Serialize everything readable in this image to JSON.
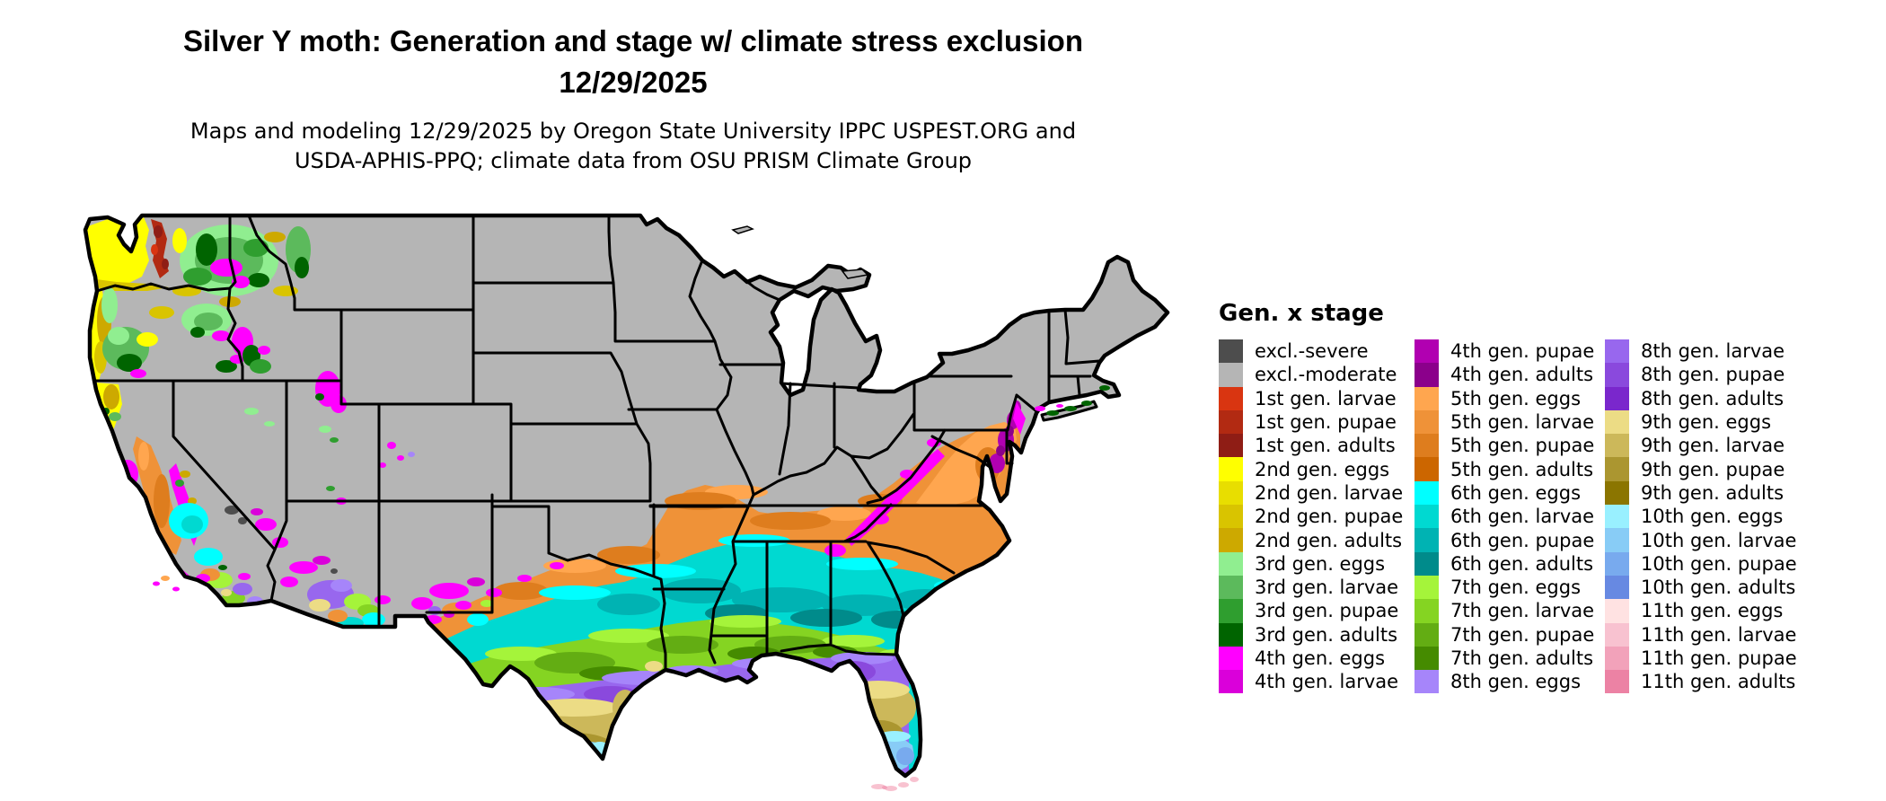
{
  "header": {
    "title_line1": "Silver Y moth: Generation and stage w/ climate stress exclusion",
    "title_line2": "12/29/2025",
    "subtitle_line1": "Maps and modeling 12/29/2025 by Oregon State University IPPC USPEST.ORG and",
    "subtitle_line2": "USDA-APHIS-PPQ; climate data from OSU PRISM Climate Group"
  },
  "legend": {
    "title": "Gen. x stage",
    "columns": [
      [
        {
          "label": "excl.-severe",
          "color_key": "excl_severe"
        },
        {
          "label": "excl.-moderate",
          "color_key": "excl_moderate"
        },
        {
          "label": "1st gen. larvae",
          "color_key": "g1_larvae"
        },
        {
          "label": "1st gen. pupae",
          "color_key": "g1_pupae"
        },
        {
          "label": "1st gen. adults",
          "color_key": "g1_adults"
        },
        {
          "label": "2nd gen. eggs",
          "color_key": "g2_eggs"
        },
        {
          "label": "2nd gen. larvae",
          "color_key": "g2_larvae"
        },
        {
          "label": "2nd gen. pupae",
          "color_key": "g2_pupae"
        },
        {
          "label": "2nd gen. adults",
          "color_key": "g2_adults"
        },
        {
          "label": "3rd gen. eggs",
          "color_key": "g3_eggs"
        },
        {
          "label": "3rd gen. larvae",
          "color_key": "g3_larvae"
        },
        {
          "label": "3rd gen. pupae",
          "color_key": "g3_pupae"
        },
        {
          "label": "3rd gen. adults",
          "color_key": "g3_adults"
        },
        {
          "label": "4th gen. eggs",
          "color_key": "g4_eggs"
        },
        {
          "label": "4th gen. larvae",
          "color_key": "g4_larvae"
        }
      ],
      [
        {
          "label": "4th gen. pupae",
          "color_key": "g4_pupae"
        },
        {
          "label": "4th gen. adults",
          "color_key": "g4_adults"
        },
        {
          "label": "5th gen. eggs",
          "color_key": "g5_eggs"
        },
        {
          "label": "5th gen. larvae",
          "color_key": "g5_larvae"
        },
        {
          "label": "5th gen. pupae",
          "color_key": "g5_pupae"
        },
        {
          "label": "5th gen. adults",
          "color_key": "g5_adults"
        },
        {
          "label": "6th gen. eggs",
          "color_key": "g6_eggs"
        },
        {
          "label": "6th gen. larvae",
          "color_key": "g6_larvae"
        },
        {
          "label": "6th gen. pupae",
          "color_key": "g6_pupae"
        },
        {
          "label": "6th gen. adults",
          "color_key": "g6_adults"
        },
        {
          "label": "7th gen. eggs",
          "color_key": "g7_eggs"
        },
        {
          "label": "7th gen. larvae",
          "color_key": "g7_larvae"
        },
        {
          "label": "7th gen. pupae",
          "color_key": "g7_pupae"
        },
        {
          "label": "7th gen. adults",
          "color_key": "g7_adults"
        },
        {
          "label": "8th gen. eggs",
          "color_key": "g8_eggs"
        }
      ],
      [
        {
          "label": "8th gen. larvae",
          "color_key": "g8_larvae"
        },
        {
          "label": "8th gen. pupae",
          "color_key": "g8_pupae"
        },
        {
          "label": "8th gen. adults",
          "color_key": "g8_adults"
        },
        {
          "label": "9th gen. eggs",
          "color_key": "g9_eggs"
        },
        {
          "label": "9th gen. larvae",
          "color_key": "g9_larvae"
        },
        {
          "label": "9th gen. pupae",
          "color_key": "g9_pupae"
        },
        {
          "label": "9th gen. adults",
          "color_key": "g9_adults"
        },
        {
          "label": "10th gen. eggs",
          "color_key": "g10_eggs"
        },
        {
          "label": "10th gen. larvae",
          "color_key": "g10_larvae"
        },
        {
          "label": "10th gen. pupae",
          "color_key": "g10_pupae"
        },
        {
          "label": "10th gen. adults",
          "color_key": "g10_adults"
        },
        {
          "label": "11th gen. eggs",
          "color_key": "g11_eggs"
        },
        {
          "label": "11th gen. larvae",
          "color_key": "g11_larvae"
        },
        {
          "label": "11th gen. pupae",
          "color_key": "g11_pupae"
        },
        {
          "label": "11th gen. adults",
          "color_key": "g11_adults"
        }
      ]
    ]
  },
  "palette": {
    "excl_severe": "#4d4d4d",
    "excl_moderate": "#b5b5b5",
    "g1_larvae": "#d93511",
    "g1_pupae": "#b22a12",
    "g1_adults": "#8f1d15",
    "g2_eggs": "#ffff00",
    "g2_larvae": "#e8de00",
    "g2_pupae": "#d9c400",
    "g2_adults": "#cda900",
    "g3_eggs": "#90ee90",
    "g3_larvae": "#5cba5c",
    "g3_pupae": "#2f9e2f",
    "g3_adults": "#006400",
    "g4_eggs": "#ff00ff",
    "g4_larvae": "#da00da",
    "g4_pupae": "#b100b1",
    "g4_adults": "#8b008b",
    "g5_eggs": "#ffa64f",
    "g5_larvae": "#ef9238",
    "g5_pupae": "#de7d1e",
    "g5_adults": "#cc6600",
    "g6_eggs": "#00ffff",
    "g6_larvae": "#00d9d1",
    "g6_pupae": "#00b3b3",
    "g6_adults": "#008b8b",
    "g7_eggs": "#a5f43a",
    "g7_larvae": "#85d422",
    "g7_pupae": "#63ad13",
    "g7_adults": "#458b00",
    "g8_eggs": "#a685fa",
    "g8_larvae": "#9867ee",
    "g8_pupae": "#8a49dd",
    "g8_adults": "#7a27cc",
    "g9_eggs": "#ecdc85",
    "g9_larvae": "#ccb85a",
    "g9_pupae": "#ab9630",
    "g9_adults": "#8b7500",
    "g10_eggs": "#99f0ff",
    "g10_larvae": "#88ccf6",
    "g10_pupae": "#78aaee",
    "g10_adults": "#6789e2",
    "g11_eggs": "#ffe2e2",
    "g11_larvae": "#f8c2d0",
    "g11_pupae": "#f2a2ba",
    "g11_adults": "#ec82a4"
  }
}
